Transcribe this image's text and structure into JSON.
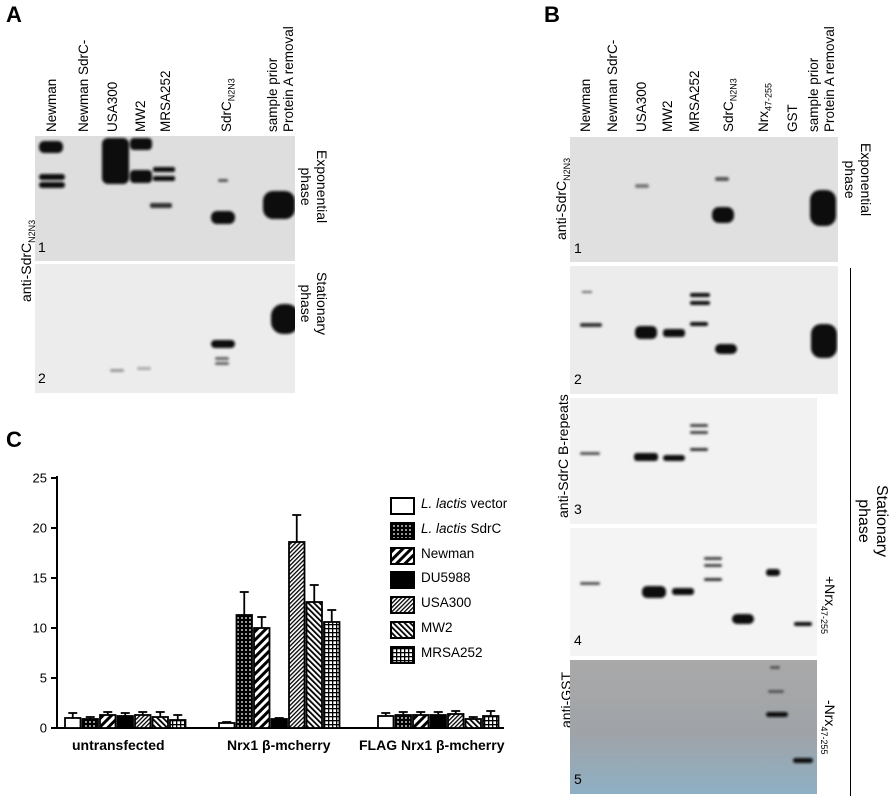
{
  "panels": {
    "a": "A",
    "b": "B",
    "c": "C"
  },
  "panel_a": {
    "lanes": [
      "Newman",
      "Newman SdrC-",
      "USA300",
      "MW2",
      "MRSA252"
    ],
    "lane_sdrc": "SdrC",
    "lane_sdrc_sub": "N2N3",
    "lane_sample_1": "sample prior",
    "lane_sample_2": "Protein A removal",
    "antibody": "anti-SdrC",
    "antibody_sub": "N2N3",
    "blot1_num": "1",
    "blot2_num": "2",
    "phase1_line1": "Exponential",
    "phase1_line2": "phase",
    "phase2_line1": "Stationary",
    "phase2_line2": "phase"
  },
  "panel_b": {
    "lanes": [
      "Newman",
      "Newman SdrC-",
      "USA300",
      "MW2",
      "MRSA252"
    ],
    "lane_sdrc": "SdrC",
    "lane_sdrc_sub": "N2N3",
    "lane_nrx": "Nrx",
    "lane_nrx_sub": "47-255",
    "lane_gst": "GST",
    "lane_sample_1": "sample prior",
    "lane_sample_2": "Protein A removal",
    "antibody_1": "anti-SdrC",
    "antibody_1_sub": "N2N3",
    "antibody_2": "anti-SdrC B-repeats",
    "antibody_3": "anti-GST",
    "nums": [
      "1",
      "2",
      "3",
      "4",
      "5"
    ],
    "phase1_line1": "Exponential",
    "phase1_line2": "phase",
    "stationary_line1": "Stationary",
    "stationary_line2": "phase",
    "plus_nrx": "+Nrx",
    "plus_nrx_sub": "47-255",
    "minus_nrx": "-Nrx",
    "minus_nrx_sub": "47-255"
  },
  "panel_c": {
    "legend": [
      {
        "italic": "L. lactis",
        "rest": " vector"
      },
      {
        "italic": "L. lactis",
        "rest": " SdrC"
      },
      {
        "italic": "",
        "rest": "Newman"
      },
      {
        "italic": "",
        "rest": "DU5988"
      },
      {
        "italic": "",
        "rest": "USA300"
      },
      {
        "italic": "",
        "rest": "MW2"
      },
      {
        "italic": "",
        "rest": "MRSA252"
      }
    ]
  },
  "chart_data": {
    "type": "bar",
    "categories": [
      "untransfected",
      "Nrx1 β-mcherry",
      "FLAG Nrx1 β-mcherry"
    ],
    "series": [
      {
        "name": "L. lactis vector",
        "values": [
          1.0,
          0.5,
          1.2
        ],
        "errors": [
          0.5,
          0.1,
          0.3
        ],
        "pattern": "white"
      },
      {
        "name": "L. lactis SdrC",
        "values": [
          0.9,
          11.3,
          1.3
        ],
        "errors": [
          0.2,
          2.3,
          0.3
        ],
        "pattern": "dots"
      },
      {
        "name": "Newman",
        "values": [
          1.3,
          10.0,
          1.3
        ],
        "errors": [
          0.3,
          1.1,
          0.3
        ],
        "pattern": "diag-wide"
      },
      {
        "name": "DU5988",
        "values": [
          1.2,
          0.9,
          1.3
        ],
        "errors": [
          0.3,
          0.1,
          0.3
        ],
        "pattern": "black"
      },
      {
        "name": "USA300",
        "values": [
          1.3,
          18.6,
          1.4
        ],
        "errors": [
          0.3,
          2.7,
          0.3
        ],
        "pattern": "diag-fine"
      },
      {
        "name": "MW2",
        "values": [
          1.1,
          12.6,
          0.9
        ],
        "errors": [
          0.5,
          1.7,
          0.2
        ],
        "pattern": "diag-back"
      },
      {
        "name": "MRSA252",
        "values": [
          0.8,
          10.6,
          1.2
        ],
        "errors": [
          0.5,
          1.2,
          0.5
        ],
        "pattern": "grid"
      }
    ],
    "yticks": [
      "0",
      "5",
      "10",
      "15",
      "20",
      "25"
    ],
    "ylim": [
      0,
      25
    ],
    "xlabel": "",
    "ylabel": ""
  }
}
